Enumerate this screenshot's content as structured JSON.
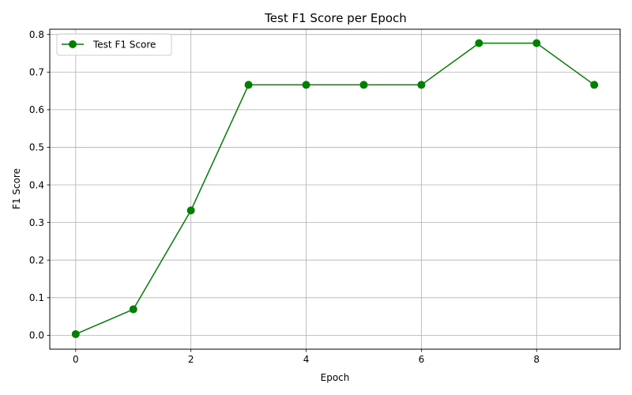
{
  "chart_data": {
    "type": "line",
    "title": "Test F1 Score per Epoch",
    "xlabel": "Epoch",
    "ylabel": "F1 Score",
    "xlim": [
      -0.45,
      9.45
    ],
    "ylim": [
      -0.037,
      0.814
    ],
    "x_ticks": [
      0,
      2,
      4,
      6,
      8
    ],
    "y_ticks": [
      0.0,
      0.1,
      0.2,
      0.3,
      0.4,
      0.5,
      0.6,
      0.7,
      0.8
    ],
    "x_tick_labels": [
      "0",
      "2",
      "4",
      "6",
      "8"
    ],
    "y_tick_labels": [
      "0.0",
      "0.1",
      "0.2",
      "0.3",
      "0.4",
      "0.5",
      "0.6",
      "0.7",
      "0.8"
    ],
    "grid": true,
    "legend_position": "top-left",
    "series": [
      {
        "name": "Test F1 Score",
        "color": "#008000",
        "marker": "circle",
        "x": [
          0,
          1,
          2,
          3,
          4,
          5,
          6,
          7,
          8,
          9
        ],
        "y": [
          0.003,
          0.069,
          0.332,
          0.666,
          0.666,
          0.666,
          0.666,
          0.777,
          0.777,
          0.666
        ]
      }
    ]
  }
}
